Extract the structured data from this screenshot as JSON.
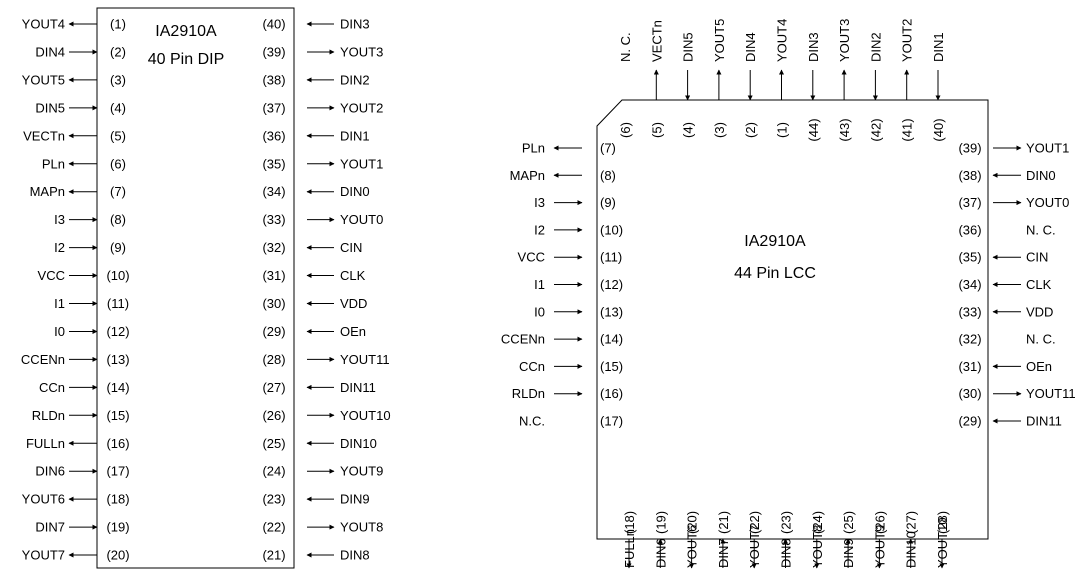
{
  "dip": {
    "title": "IA2910A",
    "subtitle": "40 Pin DIP",
    "left_pins": [
      {
        "num": "(1)",
        "name": "YOUT4",
        "dir": "out"
      },
      {
        "num": "(2)",
        "name": "DIN4",
        "dir": "in"
      },
      {
        "num": "(3)",
        "name": "YOUT5",
        "dir": "out"
      },
      {
        "num": "(4)",
        "name": "DIN5",
        "dir": "in"
      },
      {
        "num": "(5)",
        "name": "VECTn",
        "dir": "out"
      },
      {
        "num": "(6)",
        "name": "PLn",
        "dir": "out"
      },
      {
        "num": "(7)",
        "name": "MAPn",
        "dir": "out"
      },
      {
        "num": "(8)",
        "name": "I3",
        "dir": "in"
      },
      {
        "num": "(9)",
        "name": "I2",
        "dir": "in"
      },
      {
        "num": "(10)",
        "name": "VCC",
        "dir": "in"
      },
      {
        "num": "(11)",
        "name": "I1",
        "dir": "in"
      },
      {
        "num": "(12)",
        "name": "I0",
        "dir": "in"
      },
      {
        "num": "(13)",
        "name": "CCENn",
        "dir": "in"
      },
      {
        "num": "(14)",
        "name": "CCn",
        "dir": "in"
      },
      {
        "num": "(15)",
        "name": "RLDn",
        "dir": "in"
      },
      {
        "num": "(16)",
        "name": "FULLn",
        "dir": "out"
      },
      {
        "num": "(17)",
        "name": "DIN6",
        "dir": "in"
      },
      {
        "num": "(18)",
        "name": "YOUT6",
        "dir": "out"
      },
      {
        "num": "(19)",
        "name": "DIN7",
        "dir": "in"
      },
      {
        "num": "(20)",
        "name": "YOUT7",
        "dir": "out"
      }
    ],
    "right_pins": [
      {
        "num": "(40)",
        "name": "DIN3",
        "dir": "in"
      },
      {
        "num": "(39)",
        "name": "YOUT3",
        "dir": "out"
      },
      {
        "num": "(38)",
        "name": "DIN2",
        "dir": "in"
      },
      {
        "num": "(37)",
        "name": "YOUT2",
        "dir": "out"
      },
      {
        "num": "(36)",
        "name": "DIN1",
        "dir": "in"
      },
      {
        "num": "(35)",
        "name": "YOUT1",
        "dir": "out"
      },
      {
        "num": "(34)",
        "name": "DIN0",
        "dir": "in"
      },
      {
        "num": "(33)",
        "name": "YOUT0",
        "dir": "out"
      },
      {
        "num": "(32)",
        "name": "CIN",
        "dir": "in"
      },
      {
        "num": "(31)",
        "name": "CLK",
        "dir": "in"
      },
      {
        "num": "(30)",
        "name": "VDD",
        "dir": "in"
      },
      {
        "num": "(29)",
        "name": "OEn",
        "dir": "in"
      },
      {
        "num": "(28)",
        "name": "YOUT11",
        "dir": "out"
      },
      {
        "num": "(27)",
        "name": "DIN11",
        "dir": "in"
      },
      {
        "num": "(26)",
        "name": "YOUT10",
        "dir": "out"
      },
      {
        "num": "(25)",
        "name": "DIN10",
        "dir": "in"
      },
      {
        "num": "(24)",
        "name": "YOUT9",
        "dir": "out"
      },
      {
        "num": "(23)",
        "name": "DIN9",
        "dir": "in"
      },
      {
        "num": "(22)",
        "name": "YOUT8",
        "dir": "out"
      },
      {
        "num": "(21)",
        "name": "DIN8",
        "dir": "in"
      }
    ]
  },
  "lcc": {
    "title": "IA2910A",
    "subtitle": "44 Pin LCC",
    "top_pins": [
      {
        "num": "(6)",
        "name": "N. C.",
        "dir": "nc"
      },
      {
        "num": "(5)",
        "name": "VECTn",
        "dir": "out"
      },
      {
        "num": "(4)",
        "name": "DIN5",
        "dir": "in"
      },
      {
        "num": "(3)",
        "name": "YOUT5",
        "dir": "out"
      },
      {
        "num": "(2)",
        "name": "DIN4",
        "dir": "in"
      },
      {
        "num": "(1)",
        "name": "YOUT4",
        "dir": "out"
      },
      {
        "num": "(44)",
        "name": "DIN3",
        "dir": "in"
      },
      {
        "num": "(43)",
        "name": "YOUT3",
        "dir": "out"
      },
      {
        "num": "(42)",
        "name": "DIN2",
        "dir": "in"
      },
      {
        "num": "(41)",
        "name": "YOUT2",
        "dir": "out"
      },
      {
        "num": "(40)",
        "name": "DIN1",
        "dir": "in"
      }
    ],
    "left_pins": [
      {
        "num": "(7)",
        "name": "PLn",
        "dir": "out"
      },
      {
        "num": "(8)",
        "name": "MAPn",
        "dir": "out"
      },
      {
        "num": "(9)",
        "name": "I3",
        "dir": "in"
      },
      {
        "num": "(10)",
        "name": "I2",
        "dir": "in"
      },
      {
        "num": "(11)",
        "name": "VCC",
        "dir": "in"
      },
      {
        "num": "(12)",
        "name": "I1",
        "dir": "in"
      },
      {
        "num": "(13)",
        "name": "I0",
        "dir": "in"
      },
      {
        "num": "(14)",
        "name": "CCENn",
        "dir": "in"
      },
      {
        "num": "(15)",
        "name": "CCn",
        "dir": "in"
      },
      {
        "num": "(16)",
        "name": "RLDn",
        "dir": "in"
      },
      {
        "num": "(17)",
        "name": "N.C.",
        "dir": "nc"
      }
    ],
    "right_pins": [
      {
        "num": "(39)",
        "name": "YOUT1",
        "dir": "out"
      },
      {
        "num": "(38)",
        "name": "DIN0",
        "dir": "in"
      },
      {
        "num": "(37)",
        "name": "YOUT0",
        "dir": "out"
      },
      {
        "num": "(36)",
        "name": "N. C.",
        "dir": "nc"
      },
      {
        "num": "(35)",
        "name": "CIN",
        "dir": "in"
      },
      {
        "num": "(34)",
        "name": "CLK",
        "dir": "in"
      },
      {
        "num": "(33)",
        "name": "VDD",
        "dir": "in"
      },
      {
        "num": "(32)",
        "name": "N. C.",
        "dir": "nc"
      },
      {
        "num": "(31)",
        "name": "OEn",
        "dir": "in"
      },
      {
        "num": "(30)",
        "name": "YOUT11",
        "dir": "out"
      },
      {
        "num": "(29)",
        "name": "DIN11",
        "dir": "in"
      }
    ],
    "bottom_pins": [
      {
        "num": "(18)",
        "name": "FULLn",
        "dir": "out"
      },
      {
        "num": "(19)",
        "name": "DIN6",
        "dir": "in"
      },
      {
        "num": "(20)",
        "name": "YOUT6",
        "dir": "out"
      },
      {
        "num": "(21)",
        "name": "DIN7",
        "dir": "in"
      },
      {
        "num": "(22)",
        "name": "YOUT7",
        "dir": "out"
      },
      {
        "num": "(23)",
        "name": "DIN8",
        "dir": "in"
      },
      {
        "num": "(24)",
        "name": "YOUT8",
        "dir": "out"
      },
      {
        "num": "(25)",
        "name": "DIN9",
        "dir": "in"
      },
      {
        "num": "(26)",
        "name": "YOUT9",
        "dir": "out"
      },
      {
        "num": "(27)",
        "name": "DIN10",
        "dir": "in"
      },
      {
        "num": "(28)",
        "name": "YOUT10",
        "dir": "out"
      }
    ]
  }
}
